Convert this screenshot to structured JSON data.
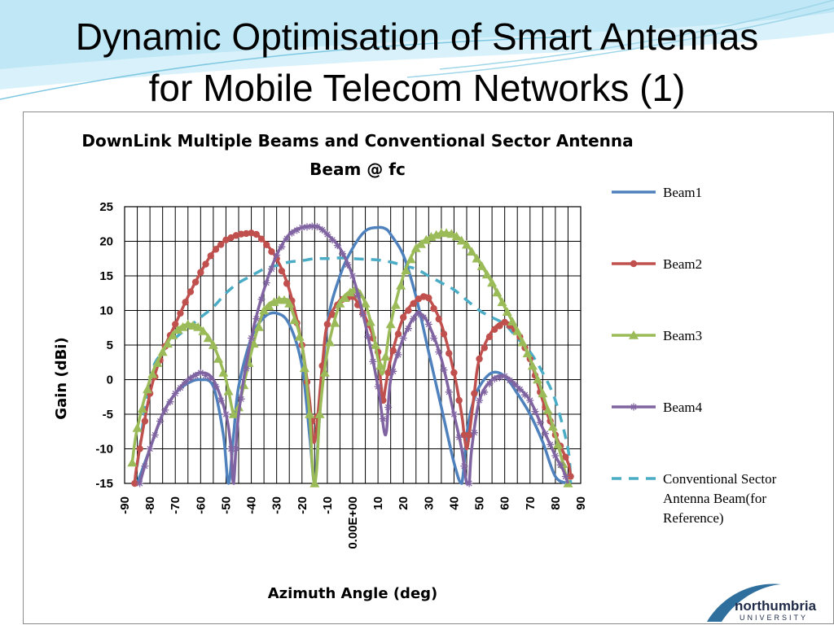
{
  "slide": {
    "title_line1": "Dynamic Optimisation of Smart Antennas",
    "title_line2": "for Mobile Telecom Networks (1)",
    "logo_text": "northumbria",
    "logo_subtext": "UNIVERSITY"
  },
  "colors": {
    "beam1": "#4f81bd",
    "beam2": "#c0504d",
    "beam3": "#9bbb59",
    "beam4": "#8064a2",
    "conventional": "#4bacc6",
    "banner": "#bfe7f5",
    "grid": "#000000",
    "logo": "#2e6f9e"
  },
  "chart_data": {
    "type": "line",
    "title": "DownLink Multiple Beams and Conventional Sector Antenna Beam @ fc",
    "title_line1": "DownLink Multiple Beams and  Conventional Sector Antenna",
    "title_line2": "Beam @ fc",
    "xlabel": "Azimuth Angle (deg)",
    "ylabel": "Gain (dBi)",
    "xlim": [
      -90,
      90
    ],
    "ylim": [
      -15,
      25
    ],
    "x_ticks": [
      "-90",
      "-80",
      "-70",
      "-60",
      "-50",
      "-40",
      "-30",
      "-20",
      "-10",
      "0.00E+00",
      "10",
      "20",
      "30",
      "40",
      "50",
      "60",
      "70",
      "80",
      "90"
    ],
    "y_ticks": [
      "25",
      "20",
      "15",
      "10",
      "5",
      "0",
      "-5",
      "-10",
      "-15"
    ],
    "grid": "vertical lines every 5 deg, horizontal lines every 5 dBi",
    "legend_position": "right",
    "series": [
      {
        "name": "Beam1",
        "marker": "none",
        "dashed": false,
        "x": [
          -85,
          -80,
          -75,
          -70,
          -65,
          -60,
          -55,
          -51,
          -49,
          -47,
          -45,
          -40,
          -35,
          -30,
          -25,
          -20,
          -17,
          -15,
          -13,
          -10,
          -5,
          0,
          5,
          10,
          13,
          15,
          20,
          25,
          30,
          35,
          40,
          43,
          45,
          47,
          50,
          55,
          60,
          65,
          70,
          75,
          80,
          85
        ],
        "y": [
          -15,
          -10,
          -5,
          -2,
          -0.5,
          0,
          -1,
          -8,
          -15,
          -8,
          -1,
          6,
          9,
          9.6,
          8,
          2,
          -8,
          -15,
          -5,
          8,
          15,
          19,
          21.5,
          22,
          21.8,
          21,
          18,
          12,
          4,
          -4,
          -12,
          -15,
          -8,
          -4,
          -1,
          1,
          0.5,
          -2,
          -5,
          -9,
          -14,
          -15
        ]
      },
      {
        "name": "Beam2",
        "marker": "circle",
        "dashed": false,
        "x": [
          -86,
          -85,
          -80,
          -75,
          -70,
          -65,
          -60,
          -55,
          -50,
          -45,
          -40,
          -38,
          -35,
          -30,
          -25,
          -20,
          -17,
          -15,
          -12,
          -10,
          -5,
          0,
          5,
          10,
          11,
          12,
          13,
          15,
          20,
          25,
          28,
          30,
          35,
          40,
          43,
          44,
          45,
          46,
          48,
          50,
          55,
          60,
          65,
          70,
          75,
          80,
          85,
          86
        ],
        "y": [
          -15,
          -12,
          -2,
          4,
          8,
          12,
          15.5,
          18.5,
          20.2,
          21,
          21.2,
          21,
          20,
          17.5,
          13,
          5,
          -3,
          -9,
          2,
          8,
          11.5,
          12,
          9,
          4,
          0,
          -3,
          -1,
          3,
          9,
          11.5,
          12,
          11.8,
          8,
          1,
          -5,
          -8,
          -10,
          -8,
          -2,
          3,
          7,
          8.3,
          7,
          3,
          -3,
          -8,
          -12,
          -14
        ]
      },
      {
        "name": "Beam3",
        "marker": "triangle",
        "dashed": false,
        "x": [
          -87,
          -85,
          -80,
          -75,
          -70,
          -65,
          -60,
          -55,
          -50,
          -47,
          -45,
          -40,
          -35,
          -30,
          -27,
          -25,
          -20,
          -17,
          -16,
          -15,
          -14,
          -13,
          -10,
          -5,
          0,
          2,
          5,
          8,
          10,
          12,
          15,
          20,
          25,
          30,
          35,
          37,
          40,
          45,
          50,
          55,
          60,
          65,
          70,
          75,
          80,
          85
        ],
        "y": [
          -12,
          -7,
          0,
          4,
          7,
          8,
          7.5,
          5,
          0,
          -5,
          -4,
          4,
          10,
          11.5,
          11.5,
          11,
          5,
          -5,
          -12,
          -15,
          -12,
          -5,
          4,
          11,
          13,
          13,
          11,
          7,
          3,
          1,
          8,
          15,
          19,
          20.5,
          21.2,
          21.2,
          21,
          19.5,
          17,
          14,
          10.5,
          7,
          3,
          -2,
          -8,
          -15
        ]
      },
      {
        "name": "Beam4",
        "marker": "star",
        "dashed": false,
        "x": [
          -84,
          -80,
          -75,
          -70,
          -65,
          -60,
          -55,
          -50,
          -48,
          -47,
          -45,
          -40,
          -35,
          -30,
          -25,
          -20,
          -15,
          -13,
          -10,
          -5,
          0,
          5,
          10,
          13,
          15,
          20,
          25,
          27,
          30,
          35,
          40,
          43,
          45,
          46,
          47,
          50,
          55,
          60,
          65,
          70,
          75,
          80,
          83,
          85
        ],
        "y": [
          -15,
          -10,
          -5,
          -2,
          0,
          1,
          0,
          -5,
          -10,
          -15,
          -5,
          6,
          13,
          18,
          21,
          22,
          22.2,
          22,
          21,
          19,
          15,
          8,
          -1,
          -8,
          0,
          6,
          9.5,
          9.5,
          8,
          3,
          -5,
          -10,
          -15,
          -15,
          -10,
          -3,
          0,
          0.5,
          -1,
          -3,
          -7,
          -11,
          -13,
          -15
        ]
      },
      {
        "name": "Conventional Sector Antenna Beam(for Reference)",
        "marker": "none",
        "dashed": true,
        "x": [
          -86,
          -80,
          -75,
          -70,
          -65,
          -60,
          -55,
          -50,
          -45,
          -40,
          -35,
          -30,
          -25,
          -20,
          -15,
          -10,
          -5,
          0,
          5,
          10,
          15,
          20,
          25,
          30,
          35,
          40,
          45,
          50,
          55,
          60,
          65,
          70,
          75,
          80,
          85,
          86
        ],
        "y": [
          -15,
          0,
          4,
          6,
          7.5,
          9,
          10.5,
          12.5,
          14,
          15,
          16,
          16.5,
          17,
          17.2,
          17.5,
          17.5,
          17.6,
          17.5,
          17.4,
          17.3,
          17,
          16.5,
          16,
          15,
          14,
          13,
          11.5,
          10,
          9,
          8,
          6,
          4,
          1,
          -3,
          -10,
          -15
        ]
      }
    ]
  }
}
